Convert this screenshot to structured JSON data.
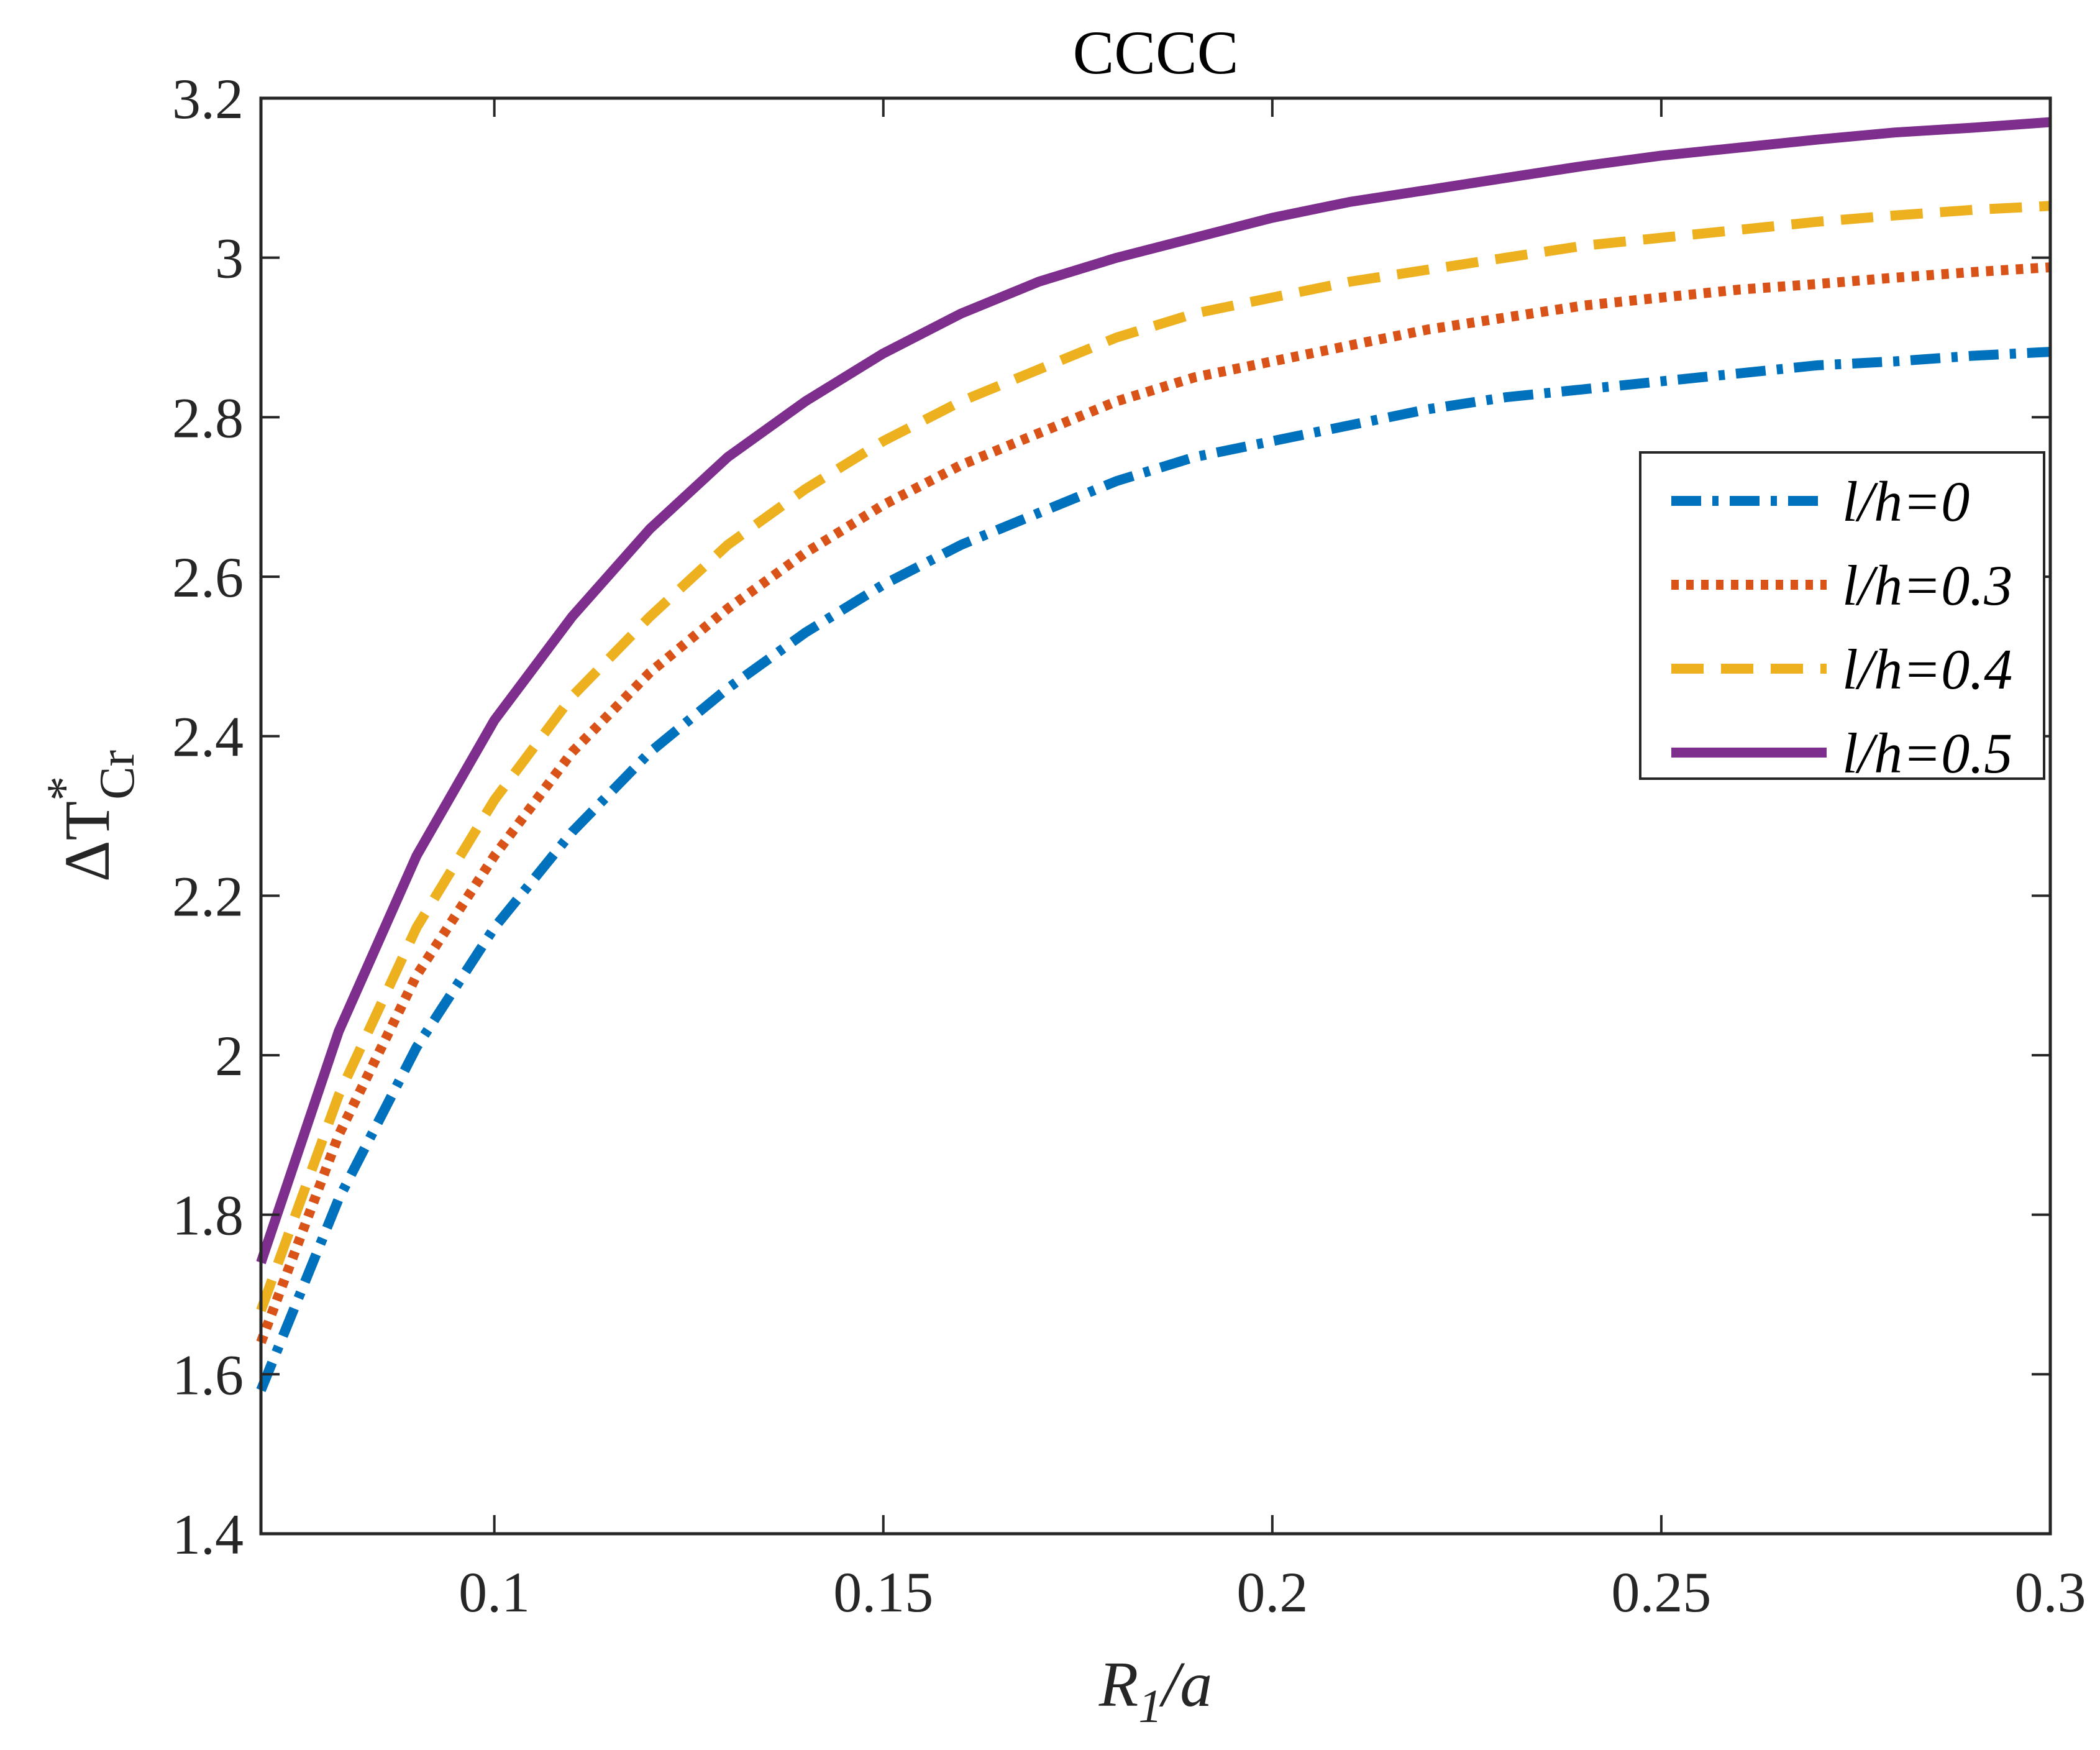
{
  "chart_data": {
    "type": "line",
    "title": "CCCC",
    "xlabel": {
      "main": "R",
      "sub": "1",
      "rest": "/a"
    },
    "ylabel": {
      "delta": "Δ",
      "main": "T",
      "sup": "*",
      "sub": "Cr"
    },
    "xlim": [
      0.07,
      0.3
    ],
    "ylim": [
      1.4,
      3.2
    ],
    "xticks": [
      0.1,
      0.15,
      0.2,
      0.25,
      0.3
    ],
    "xtick_labels": [
      "0.1",
      "0.15",
      "0.2",
      "0.25",
      "0.3"
    ],
    "yticks": [
      1.4,
      1.6,
      1.8,
      2.0,
      2.2,
      2.4,
      2.6,
      2.8,
      3.0,
      3.2
    ],
    "ytick_labels": [
      "1.4",
      "1.6",
      "1.8",
      "2",
      "2.2",
      "2.4",
      "2.6",
      "2.8",
      "3",
      "3.2"
    ],
    "grid": false,
    "legend_position": "right-middle",
    "series": [
      {
        "name": "l/h=0",
        "color": "#0072BD",
        "style": "dashdot",
        "x": [
          0.07,
          0.08,
          0.09,
          0.1,
          0.11,
          0.12,
          0.13,
          0.14,
          0.15,
          0.16,
          0.17,
          0.18,
          0.19,
          0.2,
          0.21,
          0.22,
          0.23,
          0.24,
          0.25,
          0.26,
          0.27,
          0.28,
          0.29,
          0.3
        ],
        "y": [
          1.58,
          1.82,
          2.01,
          2.16,
          2.28,
          2.38,
          2.46,
          2.53,
          2.59,
          2.64,
          2.68,
          2.72,
          2.75,
          2.77,
          2.79,
          2.81,
          2.825,
          2.835,
          2.845,
          2.855,
          2.865,
          2.87,
          2.877,
          2.882
        ]
      },
      {
        "name": "l/h=0.3",
        "color": "#D95319",
        "style": "dotted",
        "x": [
          0.07,
          0.08,
          0.09,
          0.1,
          0.11,
          0.12,
          0.13,
          0.14,
          0.15,
          0.16,
          0.17,
          0.18,
          0.19,
          0.2,
          0.21,
          0.22,
          0.23,
          0.24,
          0.25,
          0.26,
          0.27,
          0.28,
          0.29,
          0.3
        ],
        "y": [
          1.64,
          1.9,
          2.1,
          2.25,
          2.38,
          2.48,
          2.56,
          2.63,
          2.69,
          2.74,
          2.78,
          2.82,
          2.85,
          2.87,
          2.89,
          2.91,
          2.925,
          2.94,
          2.95,
          2.96,
          2.967,
          2.975,
          2.982,
          2.988
        ]
      },
      {
        "name": "l/h=0.4",
        "color": "#EDB120",
        "style": "dashed",
        "x": [
          0.07,
          0.08,
          0.09,
          0.1,
          0.11,
          0.12,
          0.13,
          0.14,
          0.15,
          0.16,
          0.17,
          0.18,
          0.19,
          0.2,
          0.21,
          0.22,
          0.23,
          0.24,
          0.25,
          0.26,
          0.27,
          0.28,
          0.29,
          0.3
        ],
        "y": [
          1.68,
          1.95,
          2.16,
          2.32,
          2.45,
          2.55,
          2.64,
          2.71,
          2.77,
          2.82,
          2.86,
          2.9,
          2.93,
          2.95,
          2.97,
          2.985,
          3.0,
          3.015,
          3.025,
          3.035,
          3.045,
          3.053,
          3.06,
          3.065
        ]
      },
      {
        "name": "l/h=0.5",
        "color": "#7E2F8E",
        "style": "solid",
        "x": [
          0.07,
          0.08,
          0.09,
          0.1,
          0.11,
          0.12,
          0.13,
          0.14,
          0.15,
          0.16,
          0.17,
          0.18,
          0.19,
          0.2,
          0.21,
          0.22,
          0.23,
          0.24,
          0.25,
          0.26,
          0.27,
          0.28,
          0.29,
          0.3
        ],
        "y": [
          1.74,
          2.03,
          2.25,
          2.42,
          2.55,
          2.66,
          2.75,
          2.82,
          2.88,
          2.93,
          2.97,
          3.0,
          3.025,
          3.05,
          3.07,
          3.085,
          3.1,
          3.115,
          3.128,
          3.138,
          3.148,
          3.157,
          3.163,
          3.17
        ]
      }
    ]
  }
}
